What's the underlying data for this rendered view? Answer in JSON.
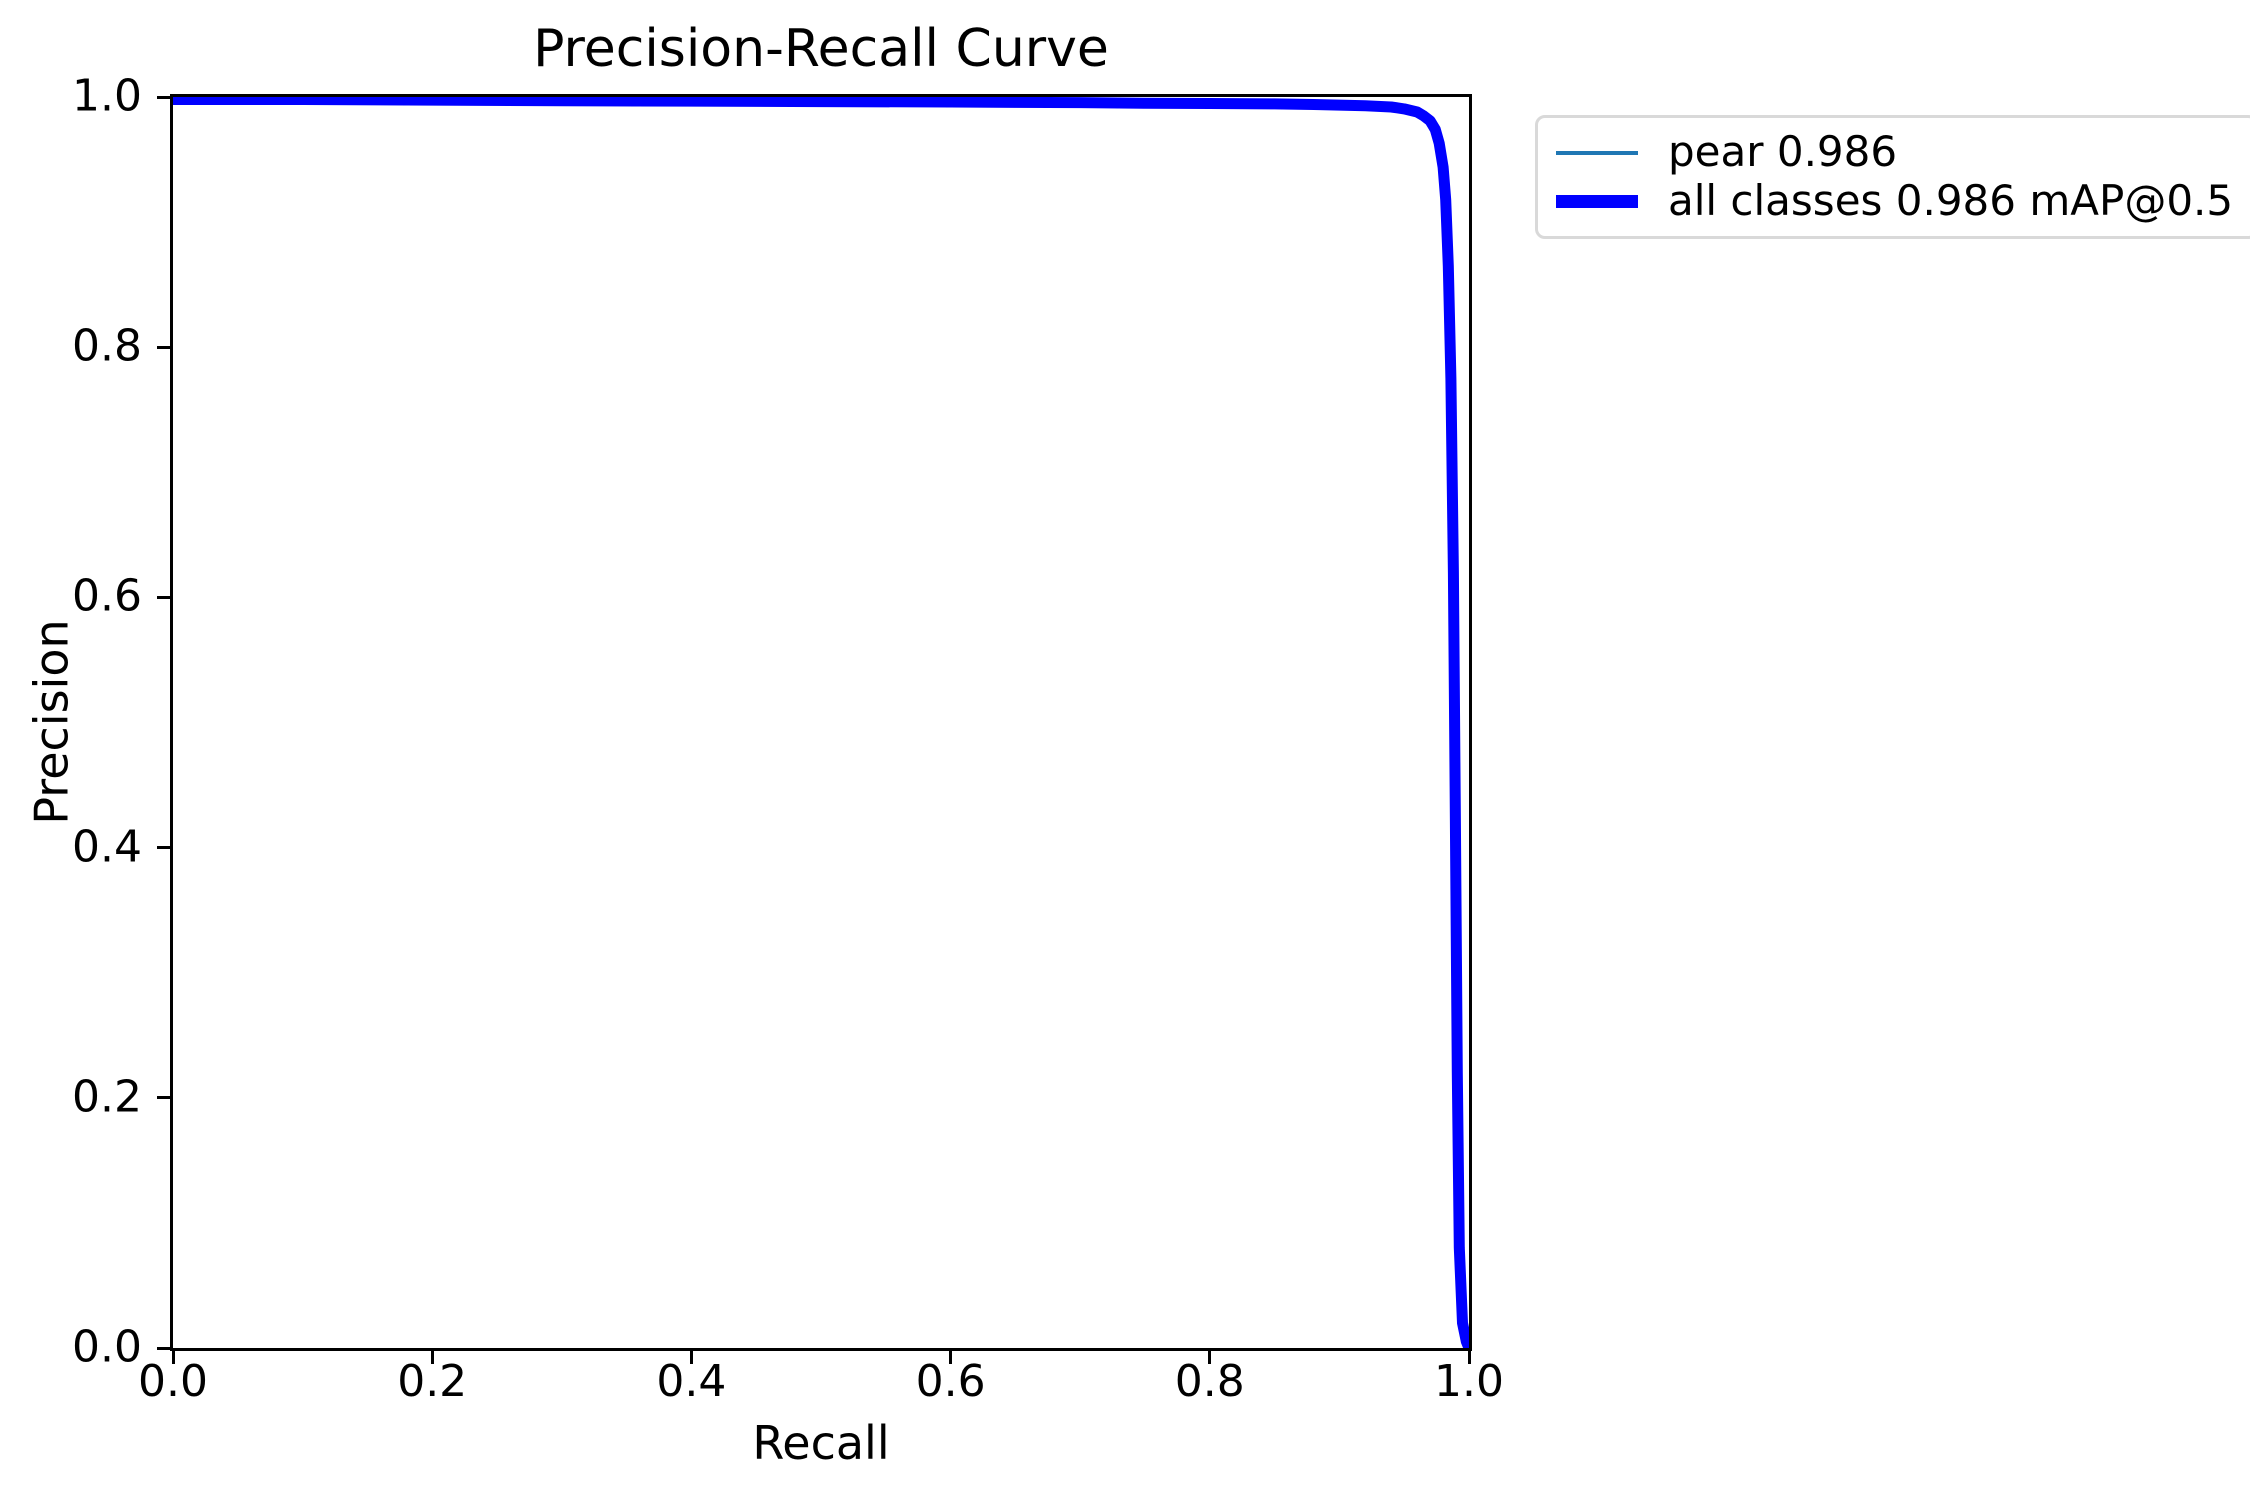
{
  "figure": {
    "background": "#ffffff",
    "plot_border_color": "#000000"
  },
  "chart_data": {
    "type": "line",
    "title": "Precision-Recall Curve",
    "xlabel": "Recall",
    "ylabel": "Precision",
    "xlim": [
      0.0,
      1.0
    ],
    "ylim": [
      0.0,
      1.0
    ],
    "x_ticks": [
      0.0,
      0.2,
      0.4,
      0.6,
      0.8,
      1.0
    ],
    "y_ticks": [
      0.0,
      0.2,
      0.4,
      0.6,
      0.8,
      1.0
    ],
    "x_tick_labels": [
      "0.0",
      "0.2",
      "0.4",
      "0.6",
      "0.8",
      "1.0"
    ],
    "y_tick_labels": [
      "0.0",
      "0.2",
      "0.4",
      "0.6",
      "0.8",
      "1.0"
    ],
    "grid": false,
    "legend_position": "outside upper right",
    "points": [
      [
        0.0,
        0.998
      ],
      [
        0.05,
        0.998
      ],
      [
        0.1,
        0.998
      ],
      [
        0.2,
        0.9975
      ],
      [
        0.3,
        0.997
      ],
      [
        0.4,
        0.9967
      ],
      [
        0.5,
        0.9963
      ],
      [
        0.6,
        0.996
      ],
      [
        0.65,
        0.9957
      ],
      [
        0.7,
        0.9955
      ],
      [
        0.75,
        0.995
      ],
      [
        0.8,
        0.9948
      ],
      [
        0.85,
        0.9945
      ],
      [
        0.88,
        0.994
      ],
      [
        0.9,
        0.9935
      ],
      [
        0.92,
        0.993
      ],
      [
        0.94,
        0.992
      ],
      [
        0.95,
        0.9905
      ],
      [
        0.96,
        0.988
      ],
      [
        0.965,
        0.985
      ],
      [
        0.97,
        0.981
      ],
      [
        0.974,
        0.974
      ],
      [
        0.977,
        0.963
      ],
      [
        0.98,
        0.944
      ],
      [
        0.982,
        0.918
      ],
      [
        0.984,
        0.865
      ],
      [
        0.986,
        0.775
      ],
      [
        0.988,
        0.62
      ],
      [
        0.9895,
        0.42
      ],
      [
        0.991,
        0.22
      ],
      [
        0.9925,
        0.08
      ],
      [
        0.995,
        0.02
      ],
      [
        0.998,
        0.005
      ],
      [
        1.0,
        0.0
      ]
    ],
    "series": [
      {
        "name": "pear 0.986",
        "color": "#1f77b4",
        "line_width": 3,
        "ap_at_0_5": 0.986
      },
      {
        "name": "all classes 0.986 mAP@0.5",
        "color": "#0000ff",
        "line_width": 11,
        "map_at_0_5": 0.986
      }
    ]
  },
  "legend": {
    "items": [
      {
        "label": "pear 0.986",
        "color": "#1f77b4",
        "sample_thickness": 4
      },
      {
        "label": "all classes 0.986 mAP@0.5",
        "color": "#0000ff",
        "sample_thickness": 13
      }
    ]
  }
}
